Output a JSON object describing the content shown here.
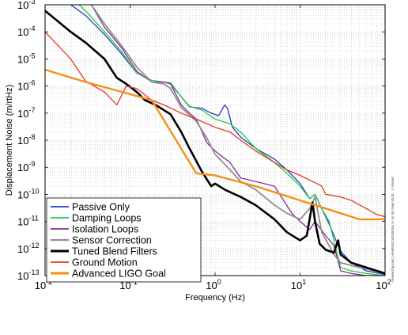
{
  "chart_data": {
    "type": "line",
    "title": "",
    "xlabel": "Frequency (Hz)",
    "ylabel": "Displacement Noise (m/rtHz)",
    "xscale": "log",
    "yscale": "log",
    "xlim": [
      0.01,
      100
    ],
    "ylim": [
      1e-13,
      0.001
    ],
    "grid": true,
    "legend_position": "bottom-left",
    "x_ticks": [
      {
        "mant": "10",
        "exp": "-2"
      },
      {
        "mant": "10",
        "exp": "-1"
      },
      {
        "mant": "10",
        "exp": "0"
      },
      {
        "mant": "10",
        "exp": "1"
      },
      {
        "mant": "10",
        "exp": "2"
      }
    ],
    "y_ticks": [
      {
        "mant": "10",
        "exp": "-13"
      },
      {
        "mant": "10",
        "exp": "-12"
      },
      {
        "mant": "10",
        "exp": "-11"
      },
      {
        "mant": "10",
        "exp": "-10"
      },
      {
        "mant": "10",
        "exp": "-9"
      },
      {
        "mant": "10",
        "exp": "-8"
      },
      {
        "mant": "10",
        "exp": "-7"
      },
      {
        "mant": "10",
        "exp": "-6"
      },
      {
        "mant": "10",
        "exp": "-5"
      },
      {
        "mant": "10",
        "exp": "-4"
      },
      {
        "mant": "10",
        "exp": "-3"
      }
    ],
    "credit": "created by plot_HAMISIControlIntro.m on 30-Sep-2010 - J. Kissel",
    "series": [
      {
        "name": "Passive Only",
        "color": "#1f3fbf",
        "width": 1.3,
        "points": [
          [
            0.02,
            0.001
          ],
          [
            0.03,
            0.0004
          ],
          [
            0.05,
            8e-05
          ],
          [
            0.08,
            1.5e-05
          ],
          [
            0.12,
            3e-06
          ],
          [
            0.18,
            1.6e-06
          ],
          [
            0.25,
            1.4e-06
          ],
          [
            0.3,
            1.2e-06
          ],
          [
            0.4,
            4e-07
          ],
          [
            0.5,
            1.7e-07
          ],
          [
            0.7,
            1.5e-07
          ],
          [
            0.9,
            1e-07
          ],
          [
            1.1,
            8e-08
          ],
          [
            1.3,
            2e-07
          ],
          [
            1.4,
            1.5e-07
          ],
          [
            1.6,
            3e-08
          ],
          [
            2,
            1.3e-08
          ],
          [
            3,
            5e-09
          ],
          [
            5,
            2e-09
          ],
          [
            7,
            8e-10
          ],
          [
            10,
            2.5e-10
          ],
          [
            13,
            7e-11
          ],
          [
            15,
            1e-10
          ],
          [
            18,
            3e-11
          ],
          [
            22,
            8e-12
          ],
          [
            25,
            3e-12
          ],
          [
            30,
            8e-13
          ],
          [
            40,
            3e-13
          ],
          [
            60,
            1.5e-13
          ],
          [
            100,
            1.1e-13
          ]
        ]
      },
      {
        "name": "Damping Loops",
        "color": "#22cc44",
        "width": 1.3,
        "points": [
          [
            0.025,
            0.001
          ],
          [
            0.03,
            0.0006
          ],
          [
            0.05,
            0.0001
          ],
          [
            0.08,
            1.8e-05
          ],
          [
            0.12,
            3e-06
          ],
          [
            0.18,
            1.6e-06
          ],
          [
            0.25,
            1.4e-06
          ],
          [
            0.3,
            1.3e-06
          ],
          [
            0.4,
            4e-07
          ],
          [
            0.5,
            1.8e-07
          ],
          [
            0.7,
            1.3e-07
          ],
          [
            1,
            6e-08
          ],
          [
            1.5,
            4e-08
          ],
          [
            2,
            2e-08
          ],
          [
            3,
            5e-09
          ],
          [
            5,
            1.5e-09
          ],
          [
            7,
            6e-10
          ],
          [
            10,
            2e-10
          ],
          [
            13,
            7e-11
          ],
          [
            15,
            1e-10
          ],
          [
            18,
            3e-11
          ],
          [
            22,
            1e-11
          ],
          [
            25,
            2e-12
          ],
          [
            30,
            2e-13
          ],
          [
            40,
            1.5e-13
          ],
          [
            60,
            1.2e-13
          ],
          [
            100,
            1e-13
          ]
        ]
      },
      {
        "name": "Isolation Loops",
        "color": "#8a2a9a",
        "width": 1.3,
        "points": [
          [
            0.035,
            0.001
          ],
          [
            0.05,
            0.00015
          ],
          [
            0.08,
            2.5e-05
          ],
          [
            0.12,
            3.5e-06
          ],
          [
            0.18,
            1.4e-06
          ],
          [
            0.25,
            1.4e-06
          ],
          [
            0.3,
            1.2e-06
          ],
          [
            0.4,
            2e-07
          ],
          [
            0.5,
            1e-07
          ],
          [
            0.6,
            6e-08
          ],
          [
            0.8,
            8e-09
          ],
          [
            1,
            4e-09
          ],
          [
            1.5,
            1.5e-09
          ],
          [
            2,
            4e-10
          ],
          [
            3,
            3e-10
          ],
          [
            5,
            2e-10
          ],
          [
            8,
            2e-11
          ],
          [
            10,
            1e-11
          ],
          [
            13,
            5e-12
          ],
          [
            15,
            1e-11
          ],
          [
            20,
            3e-12
          ],
          [
            25,
            1.3e-12
          ],
          [
            30,
            1.5e-13
          ],
          [
            40,
            1.2e-13
          ],
          [
            60,
            1e-13
          ],
          [
            100,
            1e-13
          ]
        ]
      },
      {
        "name": "Sensor Correction",
        "color": "#909090",
        "width": 1.8,
        "points": [
          [
            0.035,
            0.001
          ],
          [
            0.05,
            0.0002
          ],
          [
            0.08,
            3e-05
          ],
          [
            0.12,
            5e-06
          ],
          [
            0.18,
            1.4e-06
          ],
          [
            0.25,
            1.2e-06
          ],
          [
            0.3,
            8e-07
          ],
          [
            0.4,
            1.6e-07
          ],
          [
            0.6,
            5e-08
          ],
          [
            0.8,
            1.2e-08
          ],
          [
            1,
            3e-09
          ],
          [
            1.5,
            8e-10
          ],
          [
            2,
            3e-10
          ],
          [
            3,
            1.5e-10
          ],
          [
            5,
            4e-11
          ],
          [
            7,
            2e-11
          ],
          [
            10,
            1.2e-11
          ],
          [
            13,
            3e-11
          ],
          [
            15,
            8e-11
          ],
          [
            18,
            4e-12
          ],
          [
            25,
            6e-13
          ],
          [
            30,
            3e-13
          ],
          [
            50,
            2e-13
          ],
          [
            100,
            1.2e-13
          ]
        ]
      },
      {
        "name": "Tuned Blend Filters",
        "color": "#000000",
        "width": 2.6,
        "points": [
          [
            0.01,
            0.0006
          ],
          [
            0.02,
            0.0001
          ],
          [
            0.03,
            4e-05
          ],
          [
            0.05,
            1e-05
          ],
          [
            0.07,
            2e-06
          ],
          [
            0.09,
            1.2e-06
          ],
          [
            0.12,
            6e-07
          ],
          [
            0.15,
            3e-07
          ],
          [
            0.2,
            2e-07
          ],
          [
            0.3,
            9e-08
          ],
          [
            0.4,
            2e-08
          ],
          [
            0.5,
            5e-09
          ],
          [
            0.7,
            7e-10
          ],
          [
            0.9,
            2e-10
          ],
          [
            1,
            2.5e-10
          ],
          [
            1.3,
            1.5e-10
          ],
          [
            2,
            8e-11
          ],
          [
            3,
            4e-11
          ],
          [
            5,
            1.2e-11
          ],
          [
            7,
            4e-12
          ],
          [
            10,
            2e-12
          ],
          [
            12,
            3e-12
          ],
          [
            14,
            5e-11
          ],
          [
            15,
            1e-11
          ],
          [
            17,
            1.5e-12
          ],
          [
            20,
            9e-13
          ],
          [
            25,
            7e-13
          ],
          [
            28,
            2e-12
          ],
          [
            30,
            6e-13
          ],
          [
            40,
            3e-13
          ],
          [
            60,
            2e-13
          ],
          [
            100,
            1.2e-13
          ]
        ]
      },
      {
        "name": "Ground Motion",
        "color": "#e8371f",
        "width": 1.3,
        "points": [
          [
            0.01,
            0.0001
          ],
          [
            0.02,
            1e-05
          ],
          [
            0.03,
            1.5e-06
          ],
          [
            0.05,
            6e-07
          ],
          [
            0.07,
            2e-07
          ],
          [
            0.09,
            1e-06
          ],
          [
            0.12,
            8e-07
          ],
          [
            0.18,
            3e-07
          ],
          [
            0.25,
            2e-07
          ],
          [
            0.4,
            1e-07
          ],
          [
            0.6,
            6e-08
          ],
          [
            1,
            3e-08
          ],
          [
            1.5,
            2e-08
          ],
          [
            2,
            1e-08
          ],
          [
            3,
            4e-09
          ],
          [
            5,
            1.5e-09
          ],
          [
            7,
            8e-10
          ],
          [
            10,
            5e-10
          ],
          [
            14,
            3e-10
          ],
          [
            18,
            2e-10
          ],
          [
            20,
            1e-10
          ],
          [
            30,
            8e-11
          ],
          [
            40,
            6e-11
          ],
          [
            60,
            3e-11
          ],
          [
            80,
            1.8e-11
          ],
          [
            100,
            1.5e-11
          ]
        ]
      },
      {
        "name": "Advanced LIGO Goal",
        "color": "#f39019",
        "width": 2.4,
        "points": [
          [
            0.01,
            4e-06
          ],
          [
            0.03,
            1.4e-06
          ],
          [
            0.1,
            5e-07
          ],
          [
            0.18,
            3e-07
          ],
          [
            0.6,
            6e-10
          ],
          [
            1,
            5e-10
          ],
          [
            3,
            2e-10
          ],
          [
            10,
            6e-11
          ],
          [
            30,
            2e-11
          ],
          [
            50,
            1.2e-11
          ],
          [
            100,
            1.2e-11
          ]
        ]
      }
    ]
  }
}
